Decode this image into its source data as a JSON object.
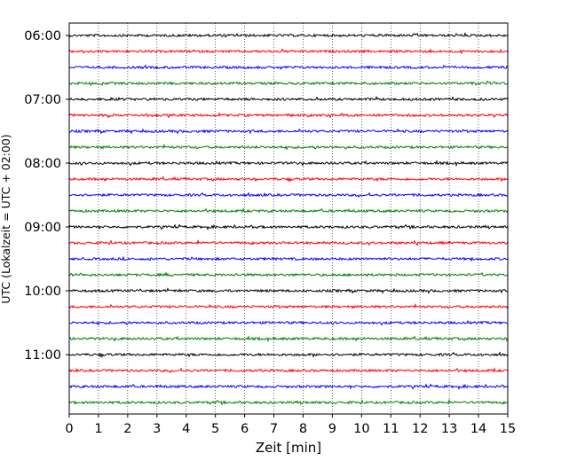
{
  "chart_data": {
    "type": "line",
    "title": "",
    "xlabel": "Zeit  [min]",
    "ylabel": "UTC (Lokalzeit = UTC + 02:00)",
    "xlim": [
      0,
      15
    ],
    "x_ticks": [
      "0",
      "1",
      "2",
      "3",
      "4",
      "5",
      "6",
      "7",
      "8",
      "9",
      "10",
      "11",
      "12",
      "13",
      "14",
      "15"
    ],
    "y_ticks": [
      "06:00",
      "07:00",
      "08:00",
      "09:00",
      "10:00",
      "11:00"
    ],
    "grid": "vertical-dotted",
    "legend": "none",
    "trace_colors": [
      "#000000",
      "#ff0000",
      "#0000ff",
      "#008000"
    ],
    "trace_start_hour": 6,
    "trace_interval_minutes": 15,
    "trace_count": 24,
    "description_hint": "helicorder: 24 seismogram traces, 15-minute rows from 06:00 to 11:45 UTC"
  }
}
